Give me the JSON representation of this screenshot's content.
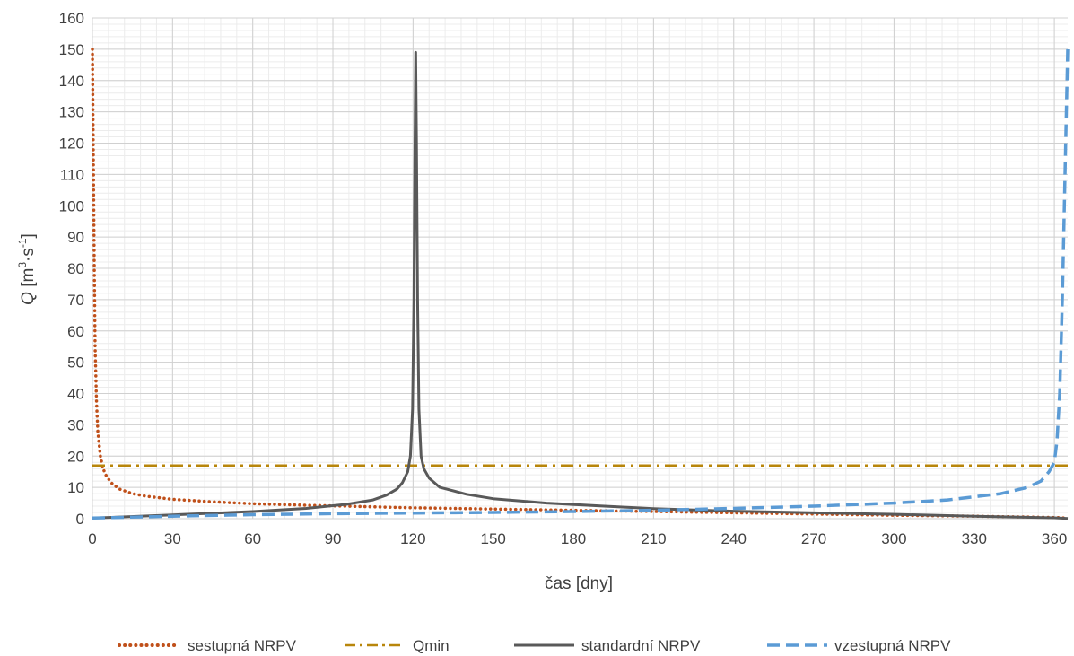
{
  "chart_data": {
    "type": "line",
    "xlabel": "čas [dny]",
    "ylabel": {
      "q": "Q",
      "unit_open": " [m",
      "sup1": "3",
      "mid": "·s",
      "sup2": "-1",
      "close": "]"
    },
    "xlim": [
      0,
      365
    ],
    "ylim": [
      0,
      160
    ],
    "x_ticks": [
      0,
      30,
      60,
      90,
      120,
      150,
      180,
      210,
      240,
      270,
      300,
      330,
      360
    ],
    "y_ticks": [
      0,
      10,
      20,
      30,
      40,
      50,
      60,
      70,
      80,
      90,
      100,
      110,
      120,
      130,
      140,
      150,
      160
    ],
    "minor_grid": true,
    "legend_position": "bottom",
    "series": [
      {
        "name": "sestupná NRPV",
        "color": "#C0501A",
        "style": "dotted",
        "points": [
          [
            0,
            150
          ],
          [
            0.3,
            120
          ],
          [
            0.7,
            80
          ],
          [
            1,
            55
          ],
          [
            1.5,
            38
          ],
          [
            2,
            28
          ],
          [
            3,
            20
          ],
          [
            4,
            16
          ],
          [
            5,
            14
          ],
          [
            7,
            11.5
          ],
          [
            10,
            9.5
          ],
          [
            15,
            8
          ],
          [
            20,
            7.2
          ],
          [
            30,
            6.2
          ],
          [
            45,
            5.4
          ],
          [
            60,
            4.8
          ],
          [
            80,
            4.3
          ],
          [
            100,
            3.9
          ],
          [
            120,
            3.5
          ],
          [
            150,
            3.1
          ],
          [
            180,
            2.7
          ],
          [
            210,
            2.3
          ],
          [
            240,
            1.9
          ],
          [
            270,
            1.5
          ],
          [
            300,
            1.1
          ],
          [
            330,
            0.8
          ],
          [
            360,
            0.4
          ],
          [
            365,
            0.2
          ]
        ]
      },
      {
        "name": "Qmin",
        "color": "#B8860B",
        "style": "dashdot",
        "points": [
          [
            0,
            17
          ],
          [
            365,
            17
          ]
        ]
      },
      {
        "name": "standardní NRPV",
        "color": "#595959",
        "style": "solid",
        "points": [
          [
            0,
            0.2
          ],
          [
            30,
            1.2
          ],
          [
            60,
            2.3
          ],
          [
            80,
            3.3
          ],
          [
            95,
            4.6
          ],
          [
            105,
            6
          ],
          [
            110,
            7.5
          ],
          [
            114,
            9.5
          ],
          [
            116,
            11.5
          ],
          [
            118,
            15
          ],
          [
            119,
            20
          ],
          [
            119.8,
            35
          ],
          [
            120.3,
            70
          ],
          [
            120.7,
            120
          ],
          [
            121,
            149
          ],
          [
            121.3,
            120
          ],
          [
            121.7,
            70
          ],
          [
            122.2,
            35
          ],
          [
            123,
            20
          ],
          [
            124,
            16
          ],
          [
            126,
            13
          ],
          [
            130,
            10
          ],
          [
            140,
            7.8
          ],
          [
            150,
            6.4
          ],
          [
            170,
            5
          ],
          [
            190,
            4.1
          ],
          [
            210,
            3.2
          ],
          [
            240,
            2.4
          ],
          [
            270,
            1.9
          ],
          [
            300,
            1.4
          ],
          [
            330,
            0.8
          ],
          [
            360,
            0.3
          ],
          [
            365,
            0.1
          ]
        ]
      },
      {
        "name": "vzestupná NRPV",
        "color": "#5B9BD5",
        "style": "dashed",
        "points": [
          [
            0,
            0.2
          ],
          [
            30,
            0.8
          ],
          [
            60,
            1.3
          ],
          [
            90,
            1.6
          ],
          [
            120,
            1.8
          ],
          [
            150,
            2
          ],
          [
            180,
            2.3
          ],
          [
            210,
            2.7
          ],
          [
            240,
            3.3
          ],
          [
            270,
            4
          ],
          [
            300,
            5
          ],
          [
            320,
            6
          ],
          [
            340,
            8
          ],
          [
            350,
            10
          ],
          [
            355,
            12
          ],
          [
            358,
            15
          ],
          [
            360,
            18
          ],
          [
            361,
            25
          ],
          [
            362,
            40
          ],
          [
            363,
            70
          ],
          [
            364,
            110
          ],
          [
            365,
            150
          ]
        ]
      }
    ]
  }
}
